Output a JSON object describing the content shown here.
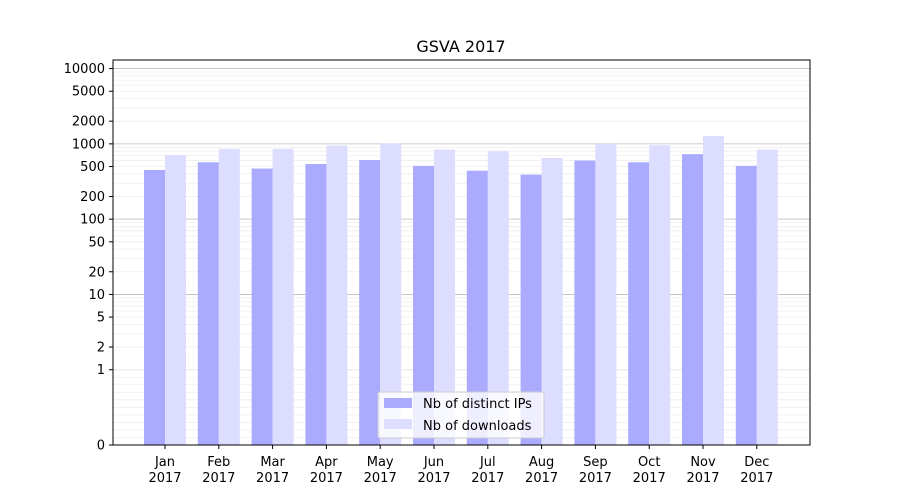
{
  "chart_data": {
    "type": "bar",
    "title": "GSVA 2017",
    "xlabel": "",
    "ylabel": "",
    "yscale": "symlog",
    "categories": [
      {
        "month": "Jan",
        "year": "2017"
      },
      {
        "month": "Feb",
        "year": "2017"
      },
      {
        "month": "Mar",
        "year": "2017"
      },
      {
        "month": "Apr",
        "year": "2017"
      },
      {
        "month": "May",
        "year": "2017"
      },
      {
        "month": "Jun",
        "year": "2017"
      },
      {
        "month": "Jul",
        "year": "2017"
      },
      {
        "month": "Aug",
        "year": "2017"
      },
      {
        "month": "Sep",
        "year": "2017"
      },
      {
        "month": "Oct",
        "year": "2017"
      },
      {
        "month": "Nov",
        "year": "2017"
      },
      {
        "month": "Dec",
        "year": "2017"
      }
    ],
    "series": [
      {
        "name": "Nb of distinct IPs",
        "color": "#aaaaff",
        "values": [
          450,
          570,
          470,
          540,
          610,
          510,
          440,
          390,
          600,
          570,
          730,
          510
        ]
      },
      {
        "name": "Nb of downloads",
        "color": "#ddddff",
        "values": [
          710,
          860,
          860,
          950,
          1020,
          840,
          800,
          650,
          1000,
          960,
          1270,
          840
        ]
      }
    ],
    "yticks": [
      {
        "value": 0,
        "label": "0"
      },
      {
        "value": 1,
        "label": "1"
      },
      {
        "value": 2,
        "label": "2"
      },
      {
        "value": 5,
        "label": "5"
      },
      {
        "value": 10,
        "label": "10"
      },
      {
        "value": 20,
        "label": "20"
      },
      {
        "value": 50,
        "label": "50"
      },
      {
        "value": 100,
        "label": "100"
      },
      {
        "value": 200,
        "label": "200"
      },
      {
        "value": 500,
        "label": "500"
      },
      {
        "value": 1000,
        "label": "1000"
      },
      {
        "value": 2000,
        "label": "2000"
      },
      {
        "value": 5000,
        "label": "5000"
      },
      {
        "value": 10000,
        "label": "10000"
      }
    ],
    "ylim": [
      0,
      13000
    ],
    "grid": true,
    "legend": "bottom-center"
  }
}
